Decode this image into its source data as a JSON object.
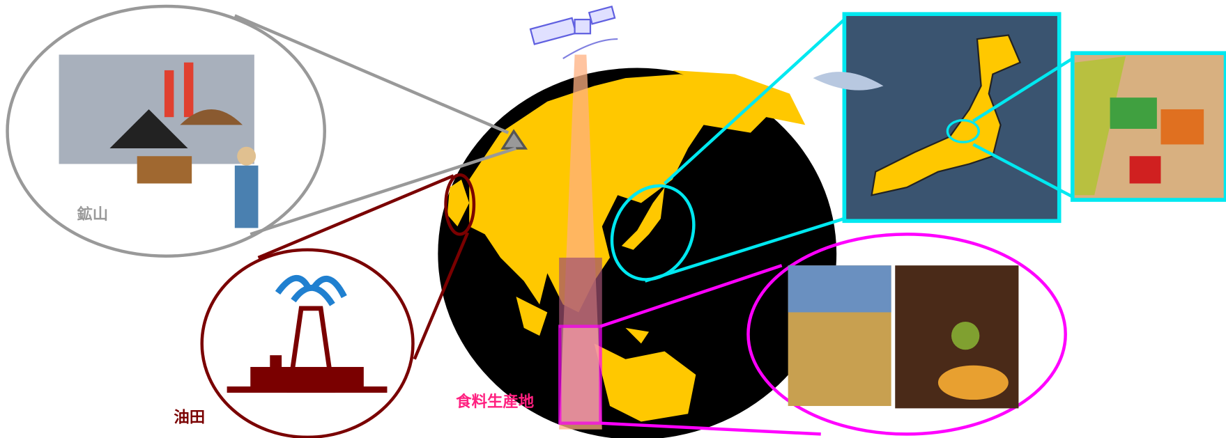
{
  "labels": {
    "mine": "鉱山",
    "oil_field": "油田",
    "food_production": "食料生産地"
  }
}
